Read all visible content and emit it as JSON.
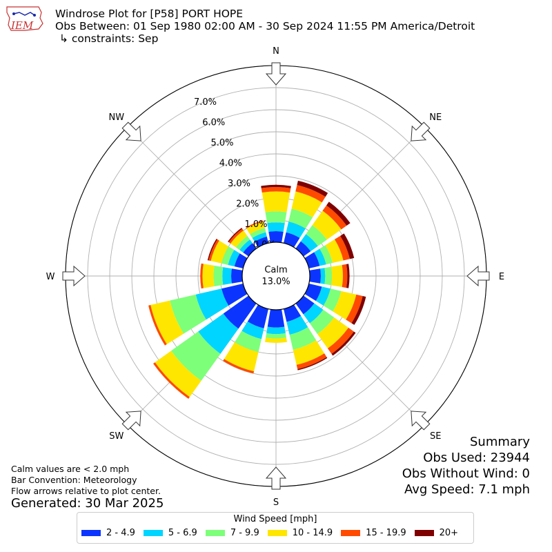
{
  "header": {
    "logo_text": "IEM",
    "title_line1": "Windrose Plot for [P58] PORT HOPE",
    "title_line2": "Obs Between: 01 Sep 1980 02:00 AM - 30 Sep 2024 11:55 PM America/Detroit",
    "title_line3": "↳ constraints: Sep"
  },
  "chart_data": {
    "type": "windrose",
    "directions": [
      "N",
      "NNE",
      "NE",
      "ENE",
      "E",
      "ESE",
      "SE",
      "SSE",
      "S",
      "SSW",
      "SW",
      "WSW",
      "W",
      "WNW",
      "NW",
      "NNW"
    ],
    "compass_labels": [
      "N",
      "NE",
      "E",
      "SE",
      "S",
      "SW",
      "W",
      "NW"
    ],
    "radial_ticks": [
      "0.0%",
      "1.0%",
      "2.0%",
      "3.0%",
      "4.0%",
      "5.0%",
      "6.0%",
      "7.0%"
    ],
    "radial_max": 8.0,
    "calm_label": "Calm",
    "calm_value": "13.0%",
    "bins": [
      {
        "label": "2 - 4.9",
        "color": "#0b35ff"
      },
      {
        "label": "5 - 6.9",
        "color": "#00d5ff"
      },
      {
        "label": "7 - 9.9",
        "color": "#7dff7a"
      },
      {
        "label": "10 - 14.9",
        "color": "#ffe600"
      },
      {
        "label": "15 - 19.9",
        "color": "#ff4a00"
      },
      {
        "label": "20+",
        "color": "#7f0000"
      }
    ],
    "series": [
      [
        0.5,
        0.4,
        0.5,
        0.9,
        0.2,
        0.1
      ],
      [
        0.5,
        0.5,
        0.6,
        0.8,
        0.3,
        0.2
      ],
      [
        0.4,
        0.4,
        0.5,
        0.8,
        0.3,
        0.2
      ],
      [
        0.5,
        0.3,
        0.3,
        0.5,
        0.3,
        0.2
      ],
      [
        0.5,
        0.2,
        0.3,
        0.5,
        0.2,
        0.1
      ],
      [
        0.6,
        0.4,
        0.5,
        0.7,
        0.3,
        0.15
      ],
      [
        0.6,
        0.5,
        0.6,
        0.8,
        0.3,
        0.1
      ],
      [
        0.6,
        0.6,
        0.7,
        0.7,
        0.2,
        0.05
      ],
      [
        0.8,
        0.3,
        0.2,
        0.2,
        0.0,
        0.0
      ],
      [
        0.9,
        0.5,
        0.6,
        0.9,
        0.1,
        0.0
      ],
      [
        1.4,
        1.4,
        1.5,
        0.9,
        0.1,
        0.0
      ],
      [
        1.0,
        1.2,
        1.2,
        0.9,
        0.1,
        0.0
      ],
      [
        0.5,
        0.4,
        0.4,
        0.5,
        0.1,
        0.0
      ],
      [
        0.4,
        0.3,
        0.3,
        0.5,
        0.1,
        0.05
      ],
      [
        0.3,
        0.2,
        0.2,
        0.3,
        0.1,
        0.05
      ],
      [
        0.3,
        0.2,
        0.2,
        0.3,
        0.05,
        0.0
      ]
    ]
  },
  "notes": {
    "line1": "Calm values are < 2.0 mph",
    "line2": "Bar Convention: Meteorology",
    "line3": "Flow arrows relative to plot center.",
    "generated": "Generated: 30 Mar 2025"
  },
  "summary": {
    "title": "Summary",
    "obs_used": "Obs Used: 23944",
    "obs_without_wind": "Obs Without Wind: 0",
    "avg_speed": "Avg Speed: 7.1 mph"
  },
  "legend": {
    "title": "Wind Speed [mph]"
  }
}
